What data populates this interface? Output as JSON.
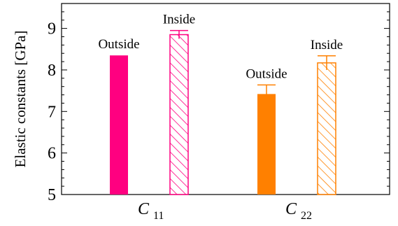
{
  "chart_data": {
    "type": "bar",
    "ylabel": "Elastic constants [GPa]",
    "ylim": [
      5,
      9.6
    ],
    "yticks": [
      5,
      6,
      7,
      8,
      9
    ],
    "categories": [
      {
        "main": "C",
        "sub": "11"
      },
      {
        "main": "C",
        "sub": "22"
      }
    ],
    "bars": [
      {
        "category": 0,
        "label": "Outside",
        "value": 8.35,
        "error": 0.0,
        "color": "#ff0080",
        "pattern": "solid"
      },
      {
        "category": 0,
        "label": "Inside",
        "value": 8.85,
        "error": 0.1,
        "color": "#ff0080",
        "pattern": "hatched"
      },
      {
        "category": 1,
        "label": "Outside",
        "value": 7.42,
        "error": 0.22,
        "color": "#ff8000",
        "pattern": "solid"
      },
      {
        "category": 1,
        "label": "Inside",
        "value": 8.17,
        "error": 0.17,
        "color": "#ff8000",
        "pattern": "hatched"
      }
    ],
    "grid": false
  }
}
